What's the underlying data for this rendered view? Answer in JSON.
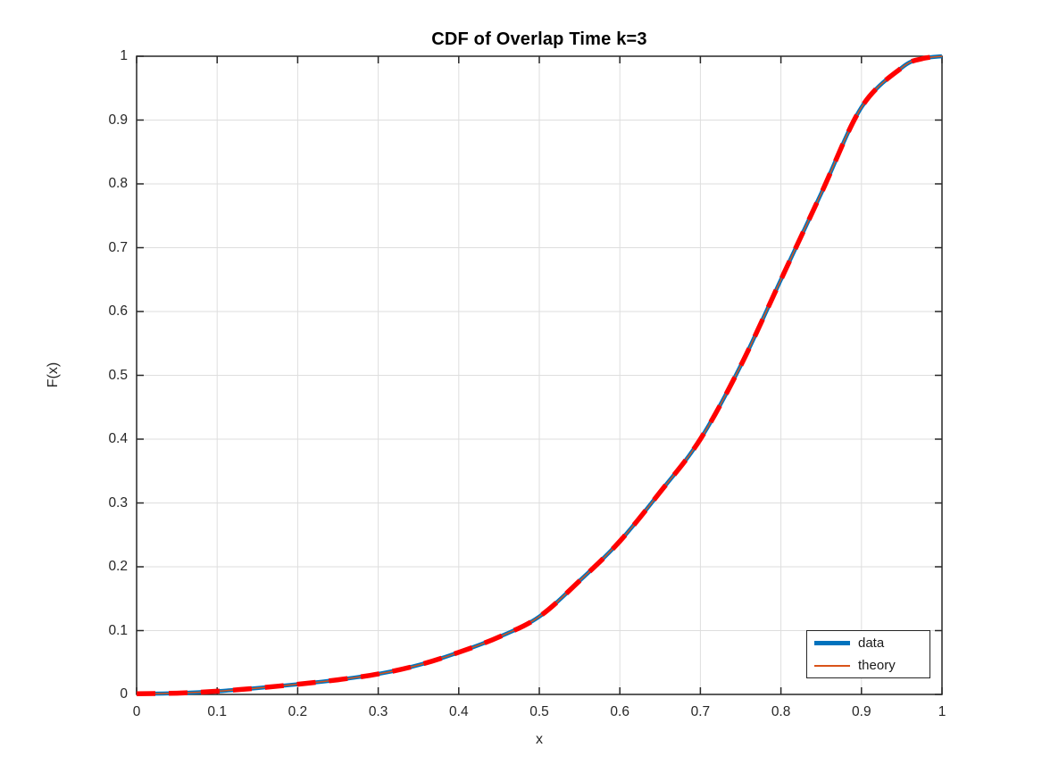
{
  "figure": {
    "title": "CDF of Overlap Time k=3",
    "xlabel": "x",
    "ylabel": "F(x)"
  },
  "axes": {
    "x_ticks": {
      "labels": [
        "0",
        "0.1",
        "0.2",
        "0.3",
        "0.4",
        "0.5",
        "0.6",
        "0.7",
        "0.8",
        "0.9",
        "1"
      ],
      "values": [
        0,
        0.1,
        0.2,
        0.3,
        0.4,
        0.5,
        0.6,
        0.7,
        0.8,
        0.9,
        1
      ]
    },
    "y_ticks": {
      "labels": [
        "0",
        "0.1",
        "0.2",
        "0.3",
        "0.4",
        "0.5",
        "0.6",
        "0.7",
        "0.8",
        "0.9",
        "1"
      ],
      "values": [
        0,
        0.1,
        0.2,
        0.3,
        0.4,
        0.5,
        0.6,
        0.7,
        0.8,
        0.9,
        1
      ]
    }
  },
  "legend": {
    "entries": [
      {
        "label": "data",
        "color": "#0072BD",
        "line_thickness": "thick"
      },
      {
        "label": "theory",
        "color": "#D95319",
        "line_thickness": "thin"
      }
    ]
  },
  "colors": {
    "data_line": "#0072BD",
    "theory_dashed_line": "#FF0000",
    "theory_legend_line": "#D95319",
    "grid": "#DEDEDE",
    "axis": "#262626",
    "tick_text": "#262626",
    "title_text": "#000000",
    "background": "#FFFFFF"
  },
  "chart_data": {
    "type": "line",
    "title": "CDF of Overlap Time k=3",
    "xlabel": "x",
    "ylabel": "F(x)",
    "xlim": [
      0,
      1
    ],
    "ylim": [
      0,
      1
    ],
    "grid": true,
    "legend_position": "southeast",
    "x": [
      0,
      0.05,
      0.1,
      0.15,
      0.2,
      0.25,
      0.3,
      0.35,
      0.4,
      0.45,
      0.5,
      0.55,
      0.6,
      0.65,
      0.7,
      0.75,
      0.8,
      0.85,
      0.9,
      0.95,
      0.975,
      1
    ],
    "series": [
      {
        "name": "data",
        "values": [
          0.001,
          0.002,
          0.005,
          0.01,
          0.016,
          0.023,
          0.032,
          0.046,
          0.066,
          0.09,
          0.122,
          0.178,
          0.24,
          0.317,
          0.4,
          0.515,
          0.65,
          0.785,
          0.92,
          0.982,
          0.996,
          1.0
        ],
        "layers": [
          {
            "color": "#0072BD",
            "width": 4.5,
            "style": "solid"
          }
        ]
      },
      {
        "name": "theory",
        "values": [
          0.001,
          0.002,
          0.005,
          0.01,
          0.016,
          0.023,
          0.032,
          0.046,
          0.066,
          0.09,
          0.122,
          0.178,
          0.24,
          0.317,
          0.4,
          0.515,
          0.65,
          0.785,
          0.92,
          0.982,
          0.996,
          1.0
        ],
        "layers": [
          {
            "color": "#D95319",
            "width": 1.5,
            "style": "solid"
          },
          {
            "color": "#FF0000",
            "width": 5.5,
            "style": "dashed",
            "dash": [
              21,
              15
            ]
          }
        ]
      }
    ],
    "note": "empirical data curve and theoretical curve coincide along the whole range"
  }
}
